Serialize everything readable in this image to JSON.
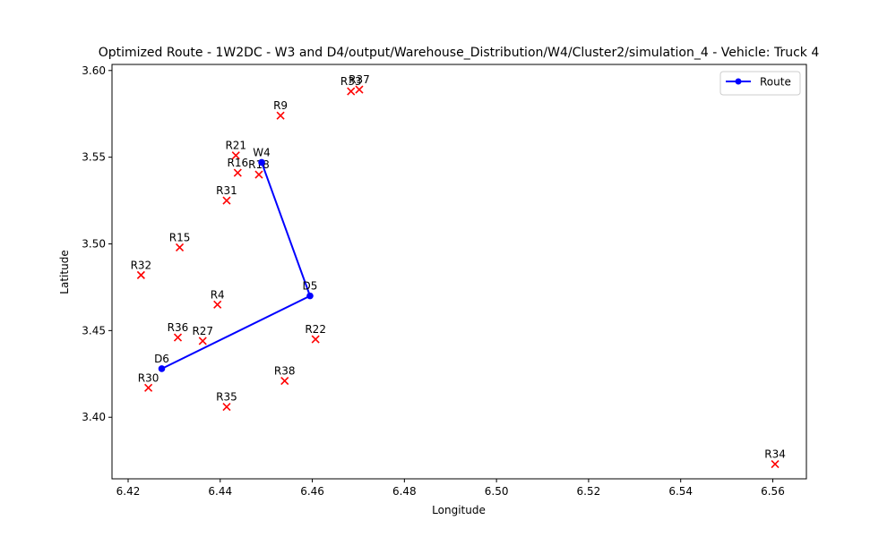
{
  "chart_data": {
    "type": "scatter",
    "title": "Optimized Route - 1W2DC - W3 and D4/output/Warehouse_Distribution/W4/Cluster2/simulation_4 - Vehicle: Truck 4",
    "xlabel": "Longitude",
    "ylabel": "Latitude",
    "xlim": [
      6.4165,
      6.5673
    ],
    "ylim": [
      3.3645,
      3.6035
    ],
    "xticks": [
      "6.42",
      "6.44",
      "6.46",
      "6.48",
      "6.50",
      "6.52",
      "6.54",
      "6.56"
    ],
    "yticks": [
      "3.40",
      "3.45",
      "3.50",
      "3.55",
      "3.60"
    ],
    "grid": false,
    "legend": {
      "placement": "top-right",
      "entries": [
        "Route"
      ]
    },
    "colors": {
      "route": "#0000ff",
      "retailer": "#ff0000"
    },
    "route": {
      "name": "Route",
      "points": [
        {
          "label": "W4",
          "x": 6.449,
          "y": 3.547
        },
        {
          "label": "D5",
          "x": 6.4595,
          "y": 3.47
        },
        {
          "label": "D6",
          "x": 6.4273,
          "y": 3.428
        }
      ]
    },
    "retailers": [
      {
        "label": "R37",
        "x": 6.4702,
        "y": 3.589
      },
      {
        "label": "R33",
        "x": 6.4684,
        "y": 3.588
      },
      {
        "label": "R9",
        "x": 6.4531,
        "y": 3.574
      },
      {
        "label": "R21",
        "x": 6.4434,
        "y": 3.551
      },
      {
        "label": "R16",
        "x": 6.4438,
        "y": 3.541
      },
      {
        "label": "R18",
        "x": 6.4484,
        "y": 3.54
      },
      {
        "label": "R31",
        "x": 6.4414,
        "y": 3.525
      },
      {
        "label": "R15",
        "x": 6.4312,
        "y": 3.498
      },
      {
        "label": "R32",
        "x": 6.4228,
        "y": 3.482
      },
      {
        "label": "R4",
        "x": 6.4394,
        "y": 3.465
      },
      {
        "label": "R36",
        "x": 6.4308,
        "y": 3.446
      },
      {
        "label": "R27",
        "x": 6.4362,
        "y": 3.444
      },
      {
        "label": "R22",
        "x": 6.4607,
        "y": 3.445
      },
      {
        "label": "R30",
        "x": 6.4244,
        "y": 3.417
      },
      {
        "label": "R38",
        "x": 6.454,
        "y": 3.421
      },
      {
        "label": "R35",
        "x": 6.4414,
        "y": 3.406
      },
      {
        "label": "R34",
        "x": 6.5605,
        "y": 3.373
      }
    ]
  }
}
